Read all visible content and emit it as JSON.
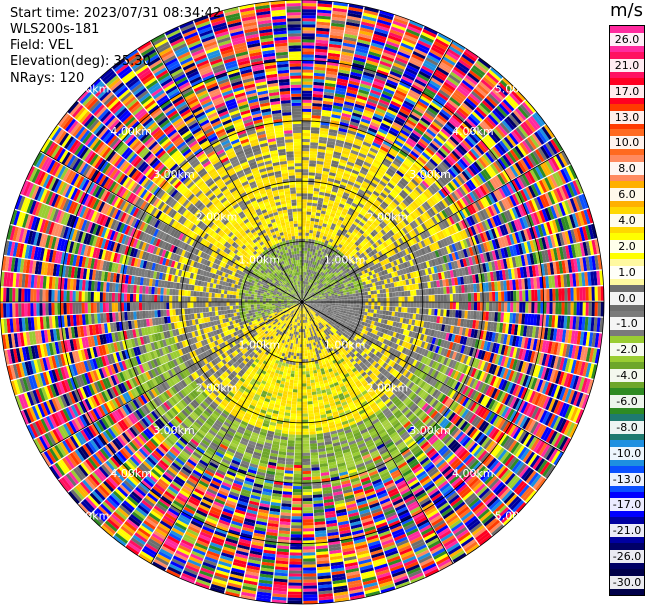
{
  "header": {
    "start_time": "Start time: 2023/07/31 08:34:42",
    "site": "WLS200s-181",
    "field": "Field: VEL",
    "elevation": "Elevation(deg): 35.30",
    "nrays": "NRays: 120"
  },
  "chart_data": {
    "type": "ppi-polar",
    "field": "VEL",
    "units": "m/s",
    "nrays": 120,
    "range_rings_km": [
      1.0,
      2.0,
      3.0,
      4.0,
      5.0
    ],
    "range_ring_labels": [
      "1.00km",
      "2.00km",
      "3.00km",
      "4.00km",
      "5.00km"
    ],
    "max_range_km": 5.0,
    "colorbar": {
      "title": "m/s",
      "labels": [
        "26.0",
        "21.0",
        "17.0",
        "13.0",
        "10.0",
        "8.0",
        "6.0",
        "4.0",
        "2.0",
        "1.0",
        "0.0",
        "-1.0",
        "-2.0",
        "-4.0",
        "-6.0",
        "-8.0",
        "-10.0",
        "-13.0",
        "-17.0",
        "-21.0",
        "-26.0",
        "-30.0"
      ],
      "colors": [
        "#ff2a9e",
        "#ff1060",
        "#ff0022",
        "#ff3a00",
        "#ff6a20",
        "#ff8a60",
        "#ffb000",
        "#ffd800",
        "#ffff00",
        "#fff9a0",
        "#6e6e6e",
        "#7a7a7a",
        "#9acd32",
        "#6ea62a",
        "#2e8b22",
        "#1e7a70",
        "#1e90e0",
        "#0a50ff",
        "#0000ff",
        "#0000a0",
        "#000066",
        "#00004a"
      ]
    },
    "description_pattern": {
      "inner_core_km": [
        0.0,
        1.7
      ],
      "noise_beyond_km": 3.1
    }
  }
}
